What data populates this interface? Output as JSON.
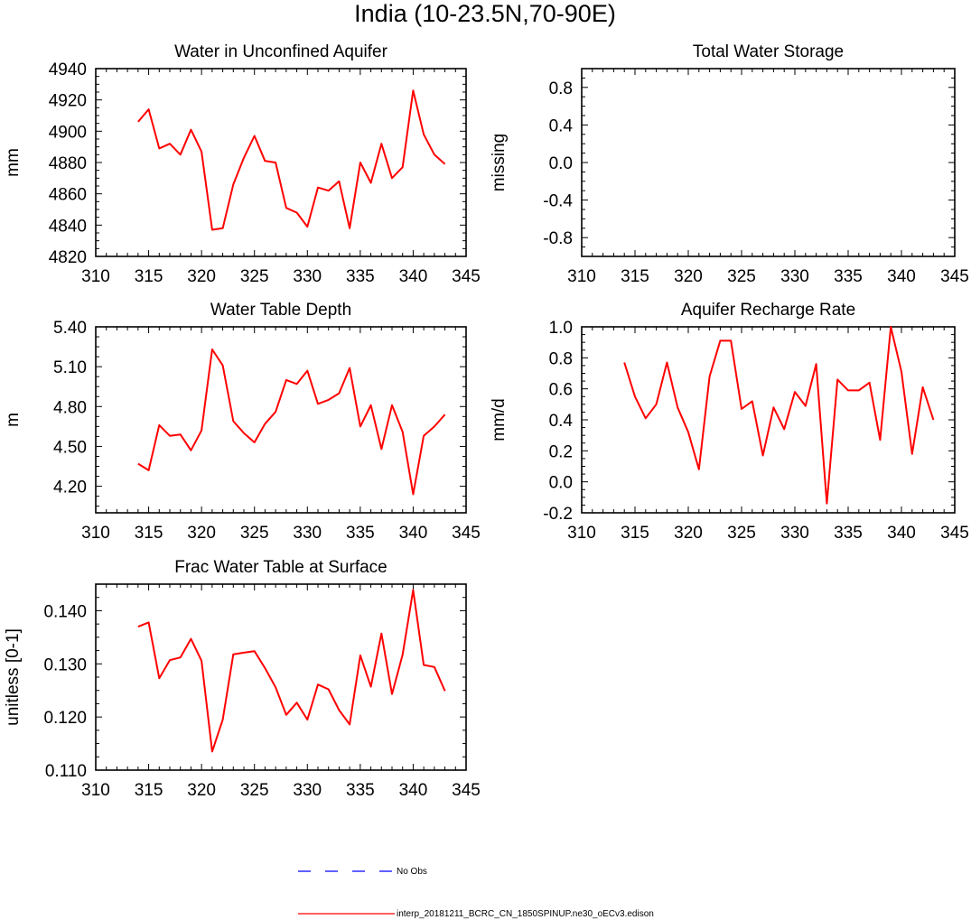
{
  "title": "India (10-23.5N,70-90E)",
  "colors": {
    "model": "#ff0000",
    "obs": "#0000ff",
    "axis": "#000000"
  },
  "legend": {
    "obs_label": "No Obs",
    "model_label": "interp_20181211_BCRC_CN_1850SPINUP.ne30_oECv3.edison"
  },
  "chart_data": [
    {
      "id": "p1",
      "type": "line",
      "title": "Water in Unconfined Aquifer",
      "ylabel": "mm",
      "xlim": [
        310,
        345
      ],
      "ylim": [
        4820,
        4940
      ],
      "xticks": [
        310,
        315,
        320,
        325,
        330,
        335,
        340,
        345
      ],
      "yticks": [
        4820,
        4840,
        4860,
        4880,
        4900,
        4920,
        4940
      ],
      "ytick_labels": [
        "4820",
        "4840",
        "4860",
        "4880",
        "4900",
        "4920",
        "4940"
      ],
      "x": [
        314,
        315,
        316,
        317,
        318,
        319,
        320,
        321,
        322,
        323,
        324,
        325,
        326,
        327,
        328,
        329,
        330,
        331,
        332,
        333,
        334,
        335,
        336,
        337,
        338,
        339,
        340,
        341,
        342,
        343
      ],
      "series": [
        {
          "values": [
            4906,
            4914,
            4889,
            4892,
            4885,
            4901,
            4887,
            4837,
            4838,
            4866,
            4883,
            4897,
            4881,
            4880,
            4851,
            4848,
            4839,
            4864,
            4862,
            4868,
            4838,
            4880,
            4867,
            4892,
            4870,
            4877,
            4926,
            4898,
            4885,
            4879
          ]
        }
      ]
    },
    {
      "id": "p2",
      "type": "line",
      "title": "Total Water Storage",
      "ylabel": "missing",
      "xlim": [
        310,
        345
      ],
      "ylim": [
        -1.0,
        1.0
      ],
      "xticks": [
        310,
        315,
        320,
        325,
        330,
        335,
        340,
        345
      ],
      "yticks": [
        -0.8,
        -0.4,
        0.0,
        0.4,
        0.8
      ],
      "ytick_labels": [
        "-0.8",
        "-0.4",
        "0.0",
        "0.4",
        "0.8"
      ],
      "x": [],
      "series": []
    },
    {
      "id": "p3",
      "type": "line",
      "title": "Water Table Depth",
      "ylabel": "m",
      "xlim": [
        310,
        345
      ],
      "ylim": [
        4.0,
        5.4
      ],
      "xticks": [
        310,
        315,
        320,
        325,
        330,
        335,
        340,
        345
      ],
      "yticks": [
        4.2,
        4.5,
        4.8,
        5.1,
        5.4
      ],
      "ytick_labels": [
        "4.20",
        "4.50",
        "4.80",
        "5.10",
        "5.40"
      ],
      "x": [
        314,
        315,
        316,
        317,
        318,
        319,
        320,
        321,
        322,
        323,
        324,
        325,
        326,
        327,
        328,
        329,
        330,
        331,
        332,
        333,
        334,
        335,
        336,
        337,
        338,
        339,
        340,
        341,
        342,
        343
      ],
      "series": [
        {
          "values": [
            4.37,
            4.32,
            4.66,
            4.58,
            4.59,
            4.47,
            4.62,
            5.23,
            5.11,
            4.69,
            4.6,
            4.53,
            4.67,
            4.76,
            5.0,
            4.97,
            5.07,
            4.82,
            4.85,
            4.9,
            5.09,
            4.65,
            4.81,
            4.48,
            4.81,
            4.61,
            4.14,
            4.58,
            4.65,
            4.74
          ]
        }
      ]
    },
    {
      "id": "p4",
      "type": "line",
      "title": "Aquifer Recharge Rate",
      "ylabel": "mm/d",
      "xlim": [
        310,
        345
      ],
      "ylim": [
        -0.2,
        1.0
      ],
      "xticks": [
        310,
        315,
        320,
        325,
        330,
        335,
        340,
        345
      ],
      "yticks": [
        -0.2,
        0.0,
        0.2,
        0.4,
        0.6,
        0.8,
        1.0
      ],
      "ytick_labels": [
        "-0.2",
        "0.0",
        "0.2",
        "0.4",
        "0.6",
        "0.8",
        "1.0"
      ],
      "x": [
        314,
        315,
        316,
        317,
        318,
        319,
        320,
        321,
        322,
        323,
        324,
        325,
        326,
        327,
        328,
        329,
        330,
        331,
        332,
        333,
        334,
        335,
        336,
        337,
        338,
        339,
        340,
        341,
        342,
        343
      ],
      "series": [
        {
          "values": [
            0.77,
            0.55,
            0.41,
            0.5,
            0.77,
            0.48,
            0.32,
            0.08,
            0.68,
            0.91,
            0.91,
            0.47,
            0.52,
            0.17,
            0.48,
            0.34,
            0.58,
            0.49,
            0.76,
            -0.14,
            0.66,
            0.59,
            0.59,
            0.64,
            0.27,
            1.0,
            0.71,
            0.18,
            0.61,
            0.4
          ]
        }
      ]
    },
    {
      "id": "p5",
      "type": "line",
      "title": "Frac Water Table at Surface",
      "ylabel": "unitless [0-1]",
      "xlim": [
        310,
        345
      ],
      "ylim": [
        0.11,
        0.145
      ],
      "xticks": [
        310,
        315,
        320,
        325,
        330,
        335,
        340,
        345
      ],
      "yticks": [
        0.11,
        0.12,
        0.13,
        0.14
      ],
      "ytick_labels": [
        "0.110",
        "0.120",
        "0.130",
        "0.140"
      ],
      "x": [
        314,
        315,
        316,
        317,
        318,
        319,
        320,
        321,
        322,
        323,
        324,
        325,
        326,
        327,
        328,
        329,
        330,
        331,
        332,
        333,
        334,
        335,
        336,
        337,
        338,
        339,
        340,
        341,
        342,
        343
      ],
      "series": [
        {
          "values": [
            0.137,
            0.1378,
            0.1273,
            0.1307,
            0.1312,
            0.1347,
            0.1306,
            0.1135,
            0.1195,
            0.1318,
            0.1321,
            0.1324,
            0.1292,
            0.1256,
            0.1204,
            0.1227,
            0.1195,
            0.1261,
            0.1252,
            0.1213,
            0.1186,
            0.1316,
            0.1257,
            0.1357,
            0.1243,
            0.1317,
            0.1439,
            0.1298,
            0.1294,
            0.1249
          ]
        }
      ]
    }
  ]
}
